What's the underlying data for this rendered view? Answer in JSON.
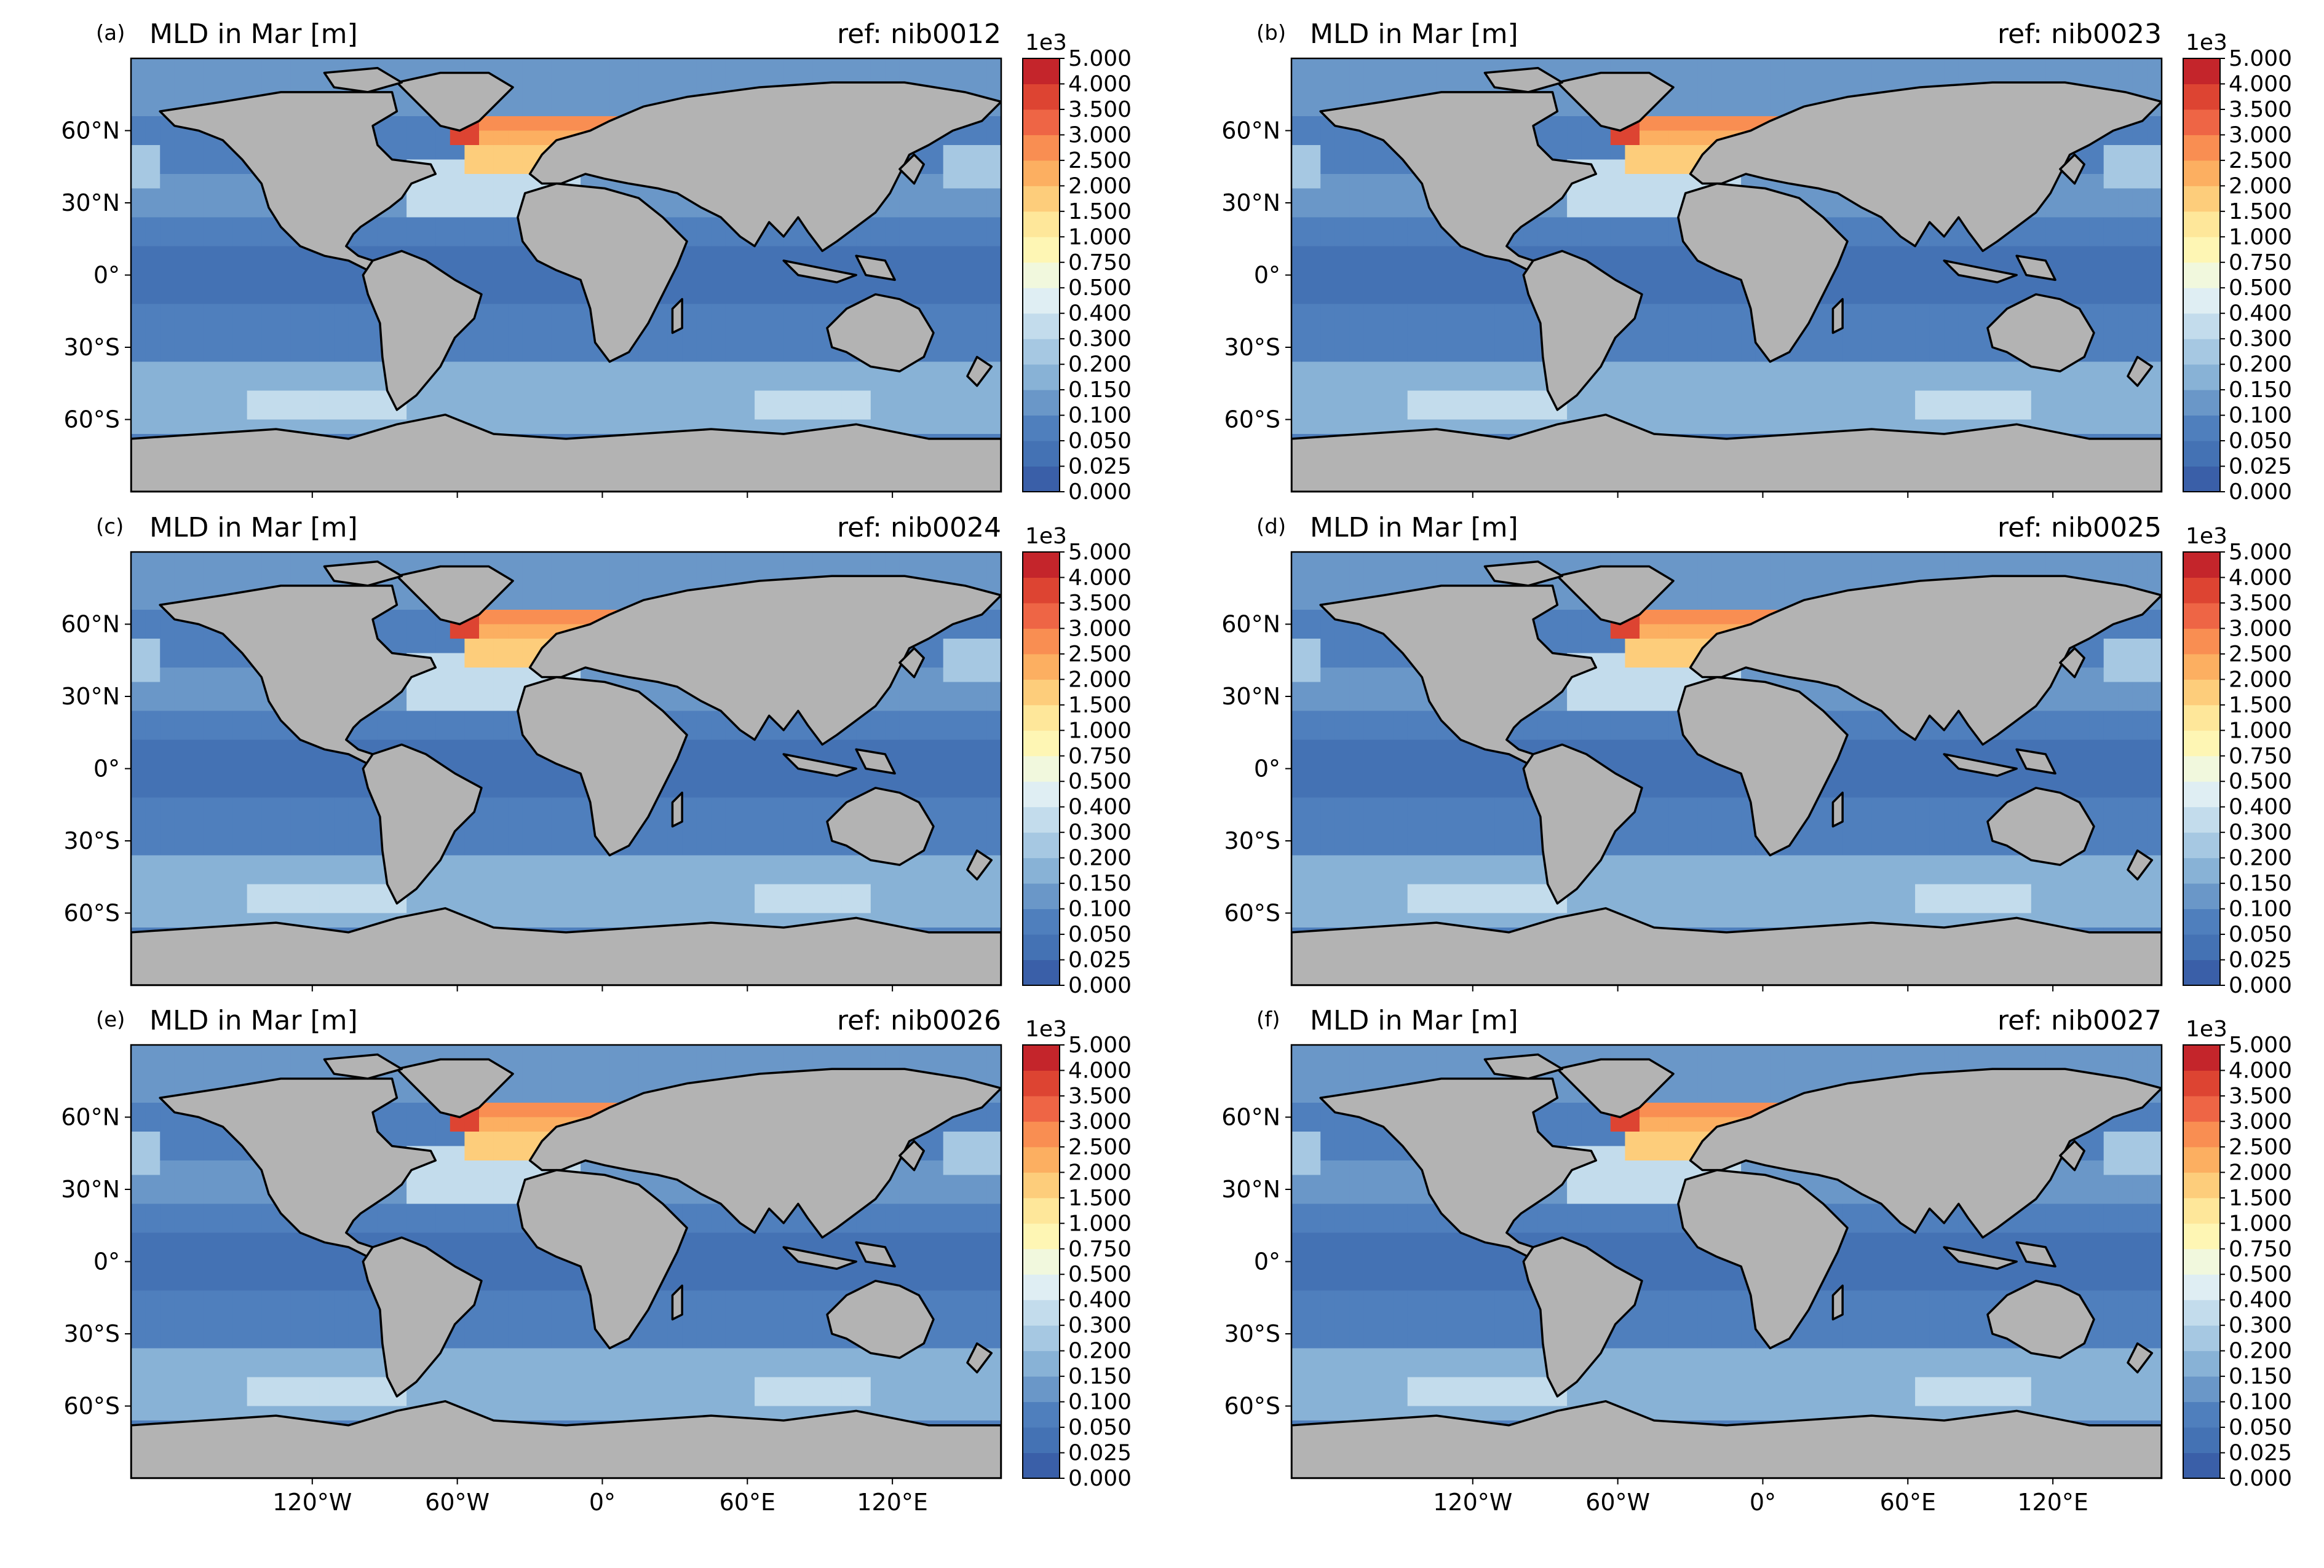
{
  "figure": {
    "x_ticks": [
      "120°W",
      "60°W",
      "0°",
      "60°E",
      "120°E"
    ],
    "y_ticks": [
      "60°N",
      "30°N",
      "0°",
      "30°S",
      "60°S"
    ],
    "panels": [
      {
        "label": "(a)",
        "title": "MLD in Mar [m]",
        "ref": "ref: nib0012"
      },
      {
        "label": "(b)",
        "title": "MLD in Mar [m]",
        "ref": "ref: nib0023"
      },
      {
        "label": "(c)",
        "title": "MLD in Mar [m]",
        "ref": "ref: nib0024"
      },
      {
        "label": "(d)",
        "title": "MLD in Mar [m]",
        "ref": "ref: nib0025"
      },
      {
        "label": "(e)",
        "title": "MLD in Mar [m]",
        "ref": "ref: nib0026"
      },
      {
        "label": "(f)",
        "title": "MLD in Mar [m]",
        "ref": "ref: nib0027"
      }
    ],
    "colorbar": {
      "exponent": "1e3",
      "levels": [
        "0.000",
        "0.025",
        "0.050",
        "0.100",
        "0.150",
        "0.200",
        "0.300",
        "0.400",
        "0.500",
        "0.750",
        "1.000",
        "1.500",
        "2.000",
        "2.500",
        "3.000",
        "3.500",
        "4.000",
        "5.000"
      ],
      "colors": [
        "#3a5fa8",
        "#4472b4",
        "#4f7fbd",
        "#6a97c8",
        "#88b2d6",
        "#a6c8e2",
        "#c3dcec",
        "#dfeef3",
        "#f1f8dd",
        "#fef6b4",
        "#fee79a",
        "#fdcd7b",
        "#fcaf61",
        "#f98e52",
        "#ee6545",
        "#dd4432",
        "#c4252b"
      ]
    },
    "colors": {
      "land": "#b3b3b3",
      "coast": "#000000"
    }
  }
}
